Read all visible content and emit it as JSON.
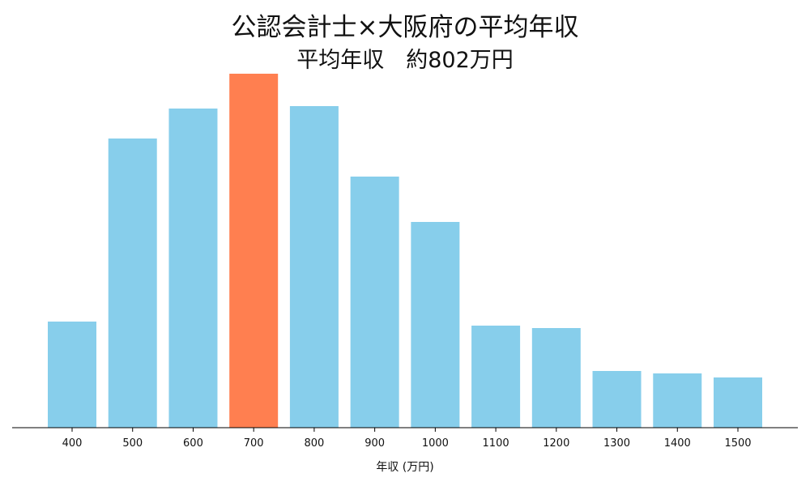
{
  "chart_data": {
    "type": "bar",
    "title": "公認会計士×大阪府の平均年収",
    "subtitle": "平均年収　約802万円",
    "xlabel": "年収 (万円)",
    "ylabel": "",
    "categories": [
      "400",
      "500",
      "600",
      "700",
      "800",
      "900",
      "1000",
      "1100",
      "1200",
      "1300",
      "1400",
      "1500"
    ],
    "values": [
      131,
      357,
      394,
      437,
      397,
      310,
      254,
      126,
      123,
      70,
      67,
      62
    ],
    "ylim": [
      0,
      460
    ],
    "highlight_category": "700",
    "colors": {
      "bar": "#87CEEB",
      "highlight": "#FF7F50",
      "axis": "#000000"
    },
    "grid": false,
    "y_axis_visible": false
  }
}
